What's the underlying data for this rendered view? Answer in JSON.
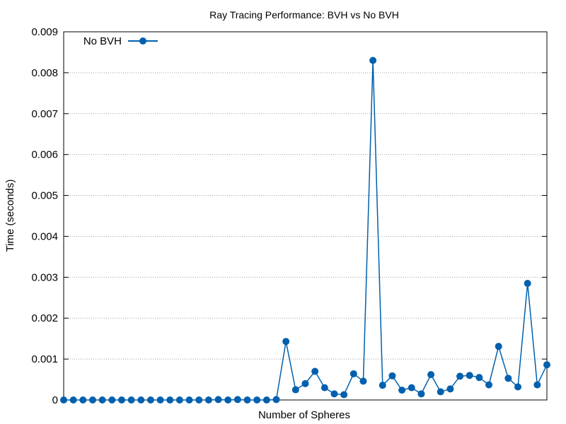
{
  "chart_data": {
    "type": "line",
    "title": "Ray Tracing Performance: BVH vs No BVH",
    "xlabel": "Number of Spheres",
    "ylabel": "Time (seconds)",
    "ylim": [
      0,
      0.009
    ],
    "yticks": [
      "0",
      "0.001",
      "0.002",
      "0.003",
      "0.004",
      "0.005",
      "0.006",
      "0.007",
      "0.008",
      "0.009"
    ],
    "grid": "horizontal",
    "legend_position": "top-left",
    "series": [
      {
        "name": "No BVH",
        "color": "#0060ad",
        "marker": "circle",
        "values": [
          0.0,
          0.0,
          0.0,
          0.0,
          0.0,
          0.0,
          0.0,
          0.0,
          0.0,
          0.0,
          0.0,
          0.0,
          0.0,
          0.0,
          0.0,
          0.0,
          1e-05,
          0.0,
          1e-05,
          0.0,
          0.0,
          0.0,
          1e-05,
          0.00143,
          0.00025,
          0.0004,
          0.0007,
          0.0003,
          0.00015,
          0.00013,
          0.00064,
          0.00046,
          0.0083,
          0.00036,
          0.00059,
          0.00024,
          0.0003,
          0.00015,
          0.00062,
          0.0002,
          0.00027,
          0.00058,
          0.0006,
          0.00055,
          0.00037,
          0.00131,
          0.00053,
          0.00032,
          0.00285,
          0.00037,
          0.00086
        ]
      }
    ]
  }
}
